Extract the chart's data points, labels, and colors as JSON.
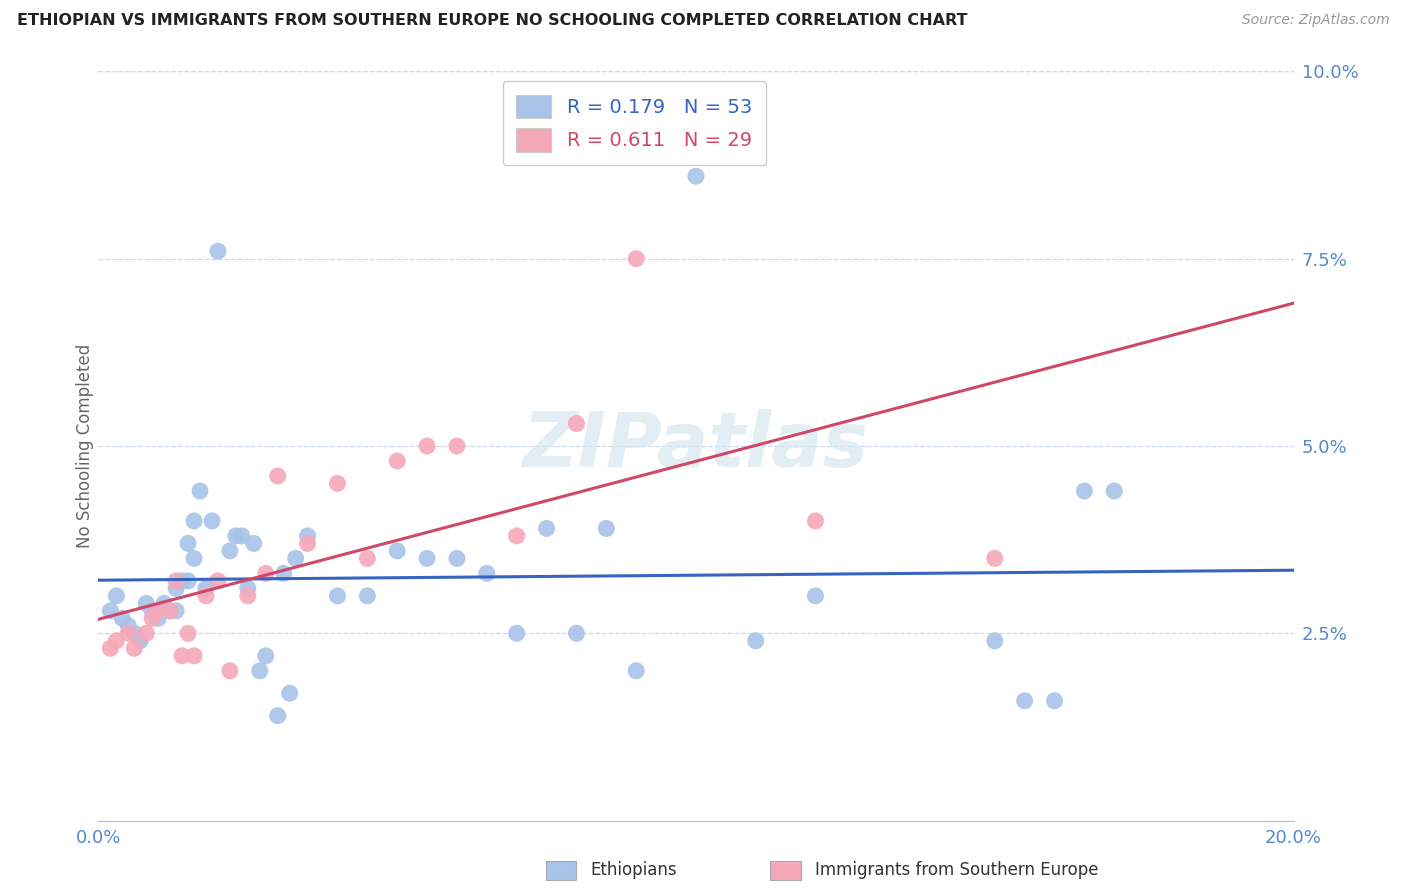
{
  "title": "ETHIOPIAN VS IMMIGRANTS FROM SOUTHERN EUROPE NO SCHOOLING COMPLETED CORRELATION CHART",
  "source": "Source: ZipAtlas.com",
  "ylabel": "No Schooling Completed",
  "xlim": [
    0.0,
    0.2
  ],
  "ylim": [
    0.0,
    0.1
  ],
  "xticks": [
    0.0,
    0.05,
    0.1,
    0.15,
    0.2
  ],
  "yticks": [
    0.025,
    0.05,
    0.075,
    0.1
  ],
  "ytick_labels": [
    "2.5%",
    "5.0%",
    "7.5%",
    "10.0%"
  ],
  "xtick_labels_shown": [
    "0.0%",
    "",
    "",
    "",
    "20.0%"
  ],
  "legend_labels": [
    "Ethiopians",
    "Immigrants from Southern Europe"
  ],
  "blue_R": "0.179",
  "blue_N": "53",
  "pink_R": "0.611",
  "pink_N": "29",
  "blue_color": "#a8c4e8",
  "pink_color": "#f5a8b8",
  "blue_line_color": "#3565c0",
  "pink_line_color": "#d04868",
  "blue_points_x": [
    0.002,
    0.003,
    0.004,
    0.005,
    0.006,
    0.007,
    0.008,
    0.009,
    0.01,
    0.011,
    0.012,
    0.013,
    0.013,
    0.014,
    0.015,
    0.015,
    0.016,
    0.016,
    0.017,
    0.018,
    0.019,
    0.02,
    0.022,
    0.023,
    0.024,
    0.025,
    0.026,
    0.027,
    0.028,
    0.03,
    0.031,
    0.032,
    0.033,
    0.035,
    0.04,
    0.045,
    0.05,
    0.055,
    0.06,
    0.065,
    0.07,
    0.075,
    0.08,
    0.085,
    0.09,
    0.1,
    0.11,
    0.12,
    0.15,
    0.155,
    0.16,
    0.165,
    0.17
  ],
  "blue_points_y": [
    0.028,
    0.03,
    0.027,
    0.026,
    0.025,
    0.024,
    0.029,
    0.028,
    0.027,
    0.029,
    0.028,
    0.028,
    0.031,
    0.032,
    0.032,
    0.037,
    0.035,
    0.04,
    0.044,
    0.031,
    0.04,
    0.076,
    0.036,
    0.038,
    0.038,
    0.031,
    0.037,
    0.02,
    0.022,
    0.014,
    0.033,
    0.017,
    0.035,
    0.038,
    0.03,
    0.03,
    0.036,
    0.035,
    0.035,
    0.033,
    0.025,
    0.039,
    0.025,
    0.039,
    0.02,
    0.086,
    0.024,
    0.03,
    0.024,
    0.016,
    0.016,
    0.044,
    0.044
  ],
  "pink_points_x": [
    0.002,
    0.003,
    0.005,
    0.006,
    0.008,
    0.009,
    0.01,
    0.012,
    0.013,
    0.014,
    0.015,
    0.016,
    0.018,
    0.02,
    0.022,
    0.025,
    0.028,
    0.03,
    0.035,
    0.04,
    0.045,
    0.05,
    0.055,
    0.06,
    0.07,
    0.08,
    0.09,
    0.12,
    0.15
  ],
  "pink_points_y": [
    0.023,
    0.024,
    0.025,
    0.023,
    0.025,
    0.027,
    0.028,
    0.028,
    0.032,
    0.022,
    0.025,
    0.022,
    0.03,
    0.032,
    0.02,
    0.03,
    0.033,
    0.046,
    0.037,
    0.045,
    0.035,
    0.048,
    0.05,
    0.05,
    0.038,
    0.053,
    0.075,
    0.04,
    0.035
  ]
}
